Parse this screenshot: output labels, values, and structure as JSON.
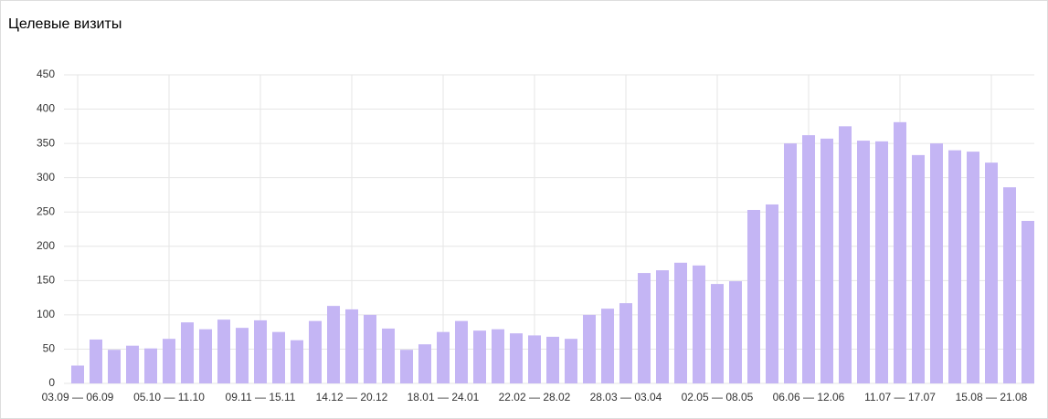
{
  "chart_data": {
    "type": "bar",
    "title": "Целевые визиты",
    "categories": [
      "03.09 — 06.09",
      null,
      null,
      null,
      null,
      "05.10 — 11.10",
      null,
      null,
      null,
      null,
      "09.11 — 15.11",
      null,
      null,
      null,
      null,
      "14.12 — 20.12",
      null,
      null,
      null,
      null,
      "18.01 — 24.01",
      null,
      null,
      null,
      null,
      "22.02 — 28.02",
      null,
      null,
      null,
      null,
      "28.03 — 03.04",
      null,
      null,
      null,
      null,
      "02.05 — 08.05",
      null,
      null,
      null,
      null,
      "06.06 — 12.06",
      null,
      null,
      null,
      null,
      "11.07 — 17.07",
      null,
      null,
      null,
      null,
      "15.08 — 21.08",
      null,
      null
    ],
    "values": [
      26,
      64,
      49,
      55,
      51,
      65,
      89,
      79,
      93,
      81,
      92,
      75,
      63,
      91,
      113,
      108,
      100,
      80,
      49,
      57,
      75,
      91,
      77,
      79,
      73,
      70,
      68,
      65,
      100,
      109,
      117,
      161,
      165,
      176,
      172,
      145,
      149,
      253,
      261,
      350,
      362,
      357,
      375,
      354,
      353,
      381,
      333,
      350,
      340,
      338,
      322,
      286,
      237
    ],
    "color": "#c4b5f4",
    "ylim": [
      0,
      450
    ],
    "yticks": [
      0,
      50,
      100,
      150,
      200,
      250,
      300,
      350,
      400,
      450
    ],
    "grid": true
  }
}
